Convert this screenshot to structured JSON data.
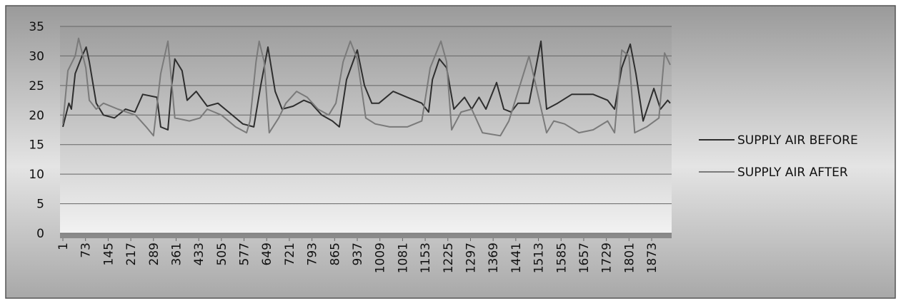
{
  "chart_data": {
    "type": "line",
    "xlim": [
      1,
      1932
    ],
    "xticks": [
      1,
      73,
      145,
      217,
      289,
      361,
      433,
      505,
      577,
      649,
      721,
      793,
      865,
      937,
      1009,
      1081,
      1153,
      1225,
      1297,
      1369,
      1441,
      1513,
      1585,
      1657,
      1729,
      1801,
      1873
    ],
    "ylim": [
      0,
      35
    ],
    "yticks": [
      0,
      5,
      10,
      15,
      20,
      25,
      30,
      35
    ],
    "grid": true,
    "legend": "right",
    "series": [
      {
        "name": "SUPPLY AIR BEFORE",
        "color": "#2e2e2e",
        "x": [
          1,
          20,
          28,
          40,
          62,
          75,
          85,
          107,
          130,
          165,
          200,
          230,
          255,
          300,
          312,
          335,
          346,
          357,
          380,
          396,
          425,
          460,
          494,
          528,
          573,
          608,
          630,
          653,
          676,
          698,
          733,
          767,
          790,
          824,
          858,
          880,
          903,
          937,
          960,
          983,
          1006,
          1051,
          1096,
          1142,
          1164,
          1176,
          1198,
          1221,
          1244,
          1278,
          1301,
          1324,
          1346,
          1380,
          1403,
          1426,
          1448,
          1483,
          1505,
          1521,
          1539,
          1574,
          1619,
          1687,
          1733,
          1755,
          1778,
          1805,
          1823,
          1846,
          1880,
          1901,
          1924,
          1932
        ],
        "values": [
          18,
          22,
          21,
          27,
          30,
          31.5,
          29,
          22,
          20,
          19.5,
          21,
          20.5,
          23.5,
          23,
          18,
          17.5,
          24.5,
          29.5,
          27.5,
          22.5,
          24,
          21.5,
          22,
          20.5,
          18.5,
          18,
          25,
          31.5,
          24,
          21,
          21.5,
          22.5,
          22,
          20,
          19,
          18,
          26,
          31,
          25,
          22,
          22,
          24,
          23,
          22,
          20.5,
          26,
          29.5,
          28,
          21,
          23,
          21,
          23,
          21,
          25.5,
          21,
          20.5,
          22,
          22,
          28,
          32.5,
          21,
          22,
          23.5,
          23.5,
          22.5,
          21,
          28,
          32,
          27,
          19,
          24.5,
          21,
          22.5,
          22
        ]
      },
      {
        "name": "SUPPLY AIR AFTER",
        "color": "#7a7a7a",
        "x": [
          1,
          17,
          40,
          51,
          74,
          85,
          107,
          130,
          176,
          232,
          266,
          289,
          312,
          335,
          357,
          403,
          437,
          460,
          505,
          550,
          585,
          596,
          615,
          625,
          641,
          657,
          687,
          710,
          744,
          778,
          812,
          846,
          869,
          892,
          915,
          937,
          964,
          994,
          1040,
          1096,
          1142,
          1169,
          1203,
          1221,
          1237,
          1267,
          1301,
          1335,
          1392,
          1419,
          1460,
          1483,
          1505,
          1539,
          1562,
          1596,
          1642,
          1687,
          1733,
          1755,
          1778,
          1801,
          1819,
          1857,
          1896,
          1914,
          1932
        ],
        "values": [
          18.5,
          27.5,
          30,
          33,
          28,
          22.5,
          21,
          22,
          21,
          20,
          18,
          16.5,
          27,
          32.5,
          19.5,
          19,
          19.5,
          21,
          20,
          18,
          17,
          19,
          29,
          32.5,
          29,
          17,
          19.5,
          22,
          24,
          23,
          21,
          20,
          22,
          29,
          32.5,
          29.5,
          19.5,
          18.5,
          18,
          18,
          19,
          28,
          32.5,
          29,
          17.5,
          20.5,
          21,
          17,
          16.5,
          19,
          26,
          30,
          25,
          17,
          19,
          18.5,
          17,
          17.5,
          19,
          17,
          31,
          30,
          17,
          18,
          19.5,
          30.5,
          28.5
        ]
      }
    ]
  }
}
